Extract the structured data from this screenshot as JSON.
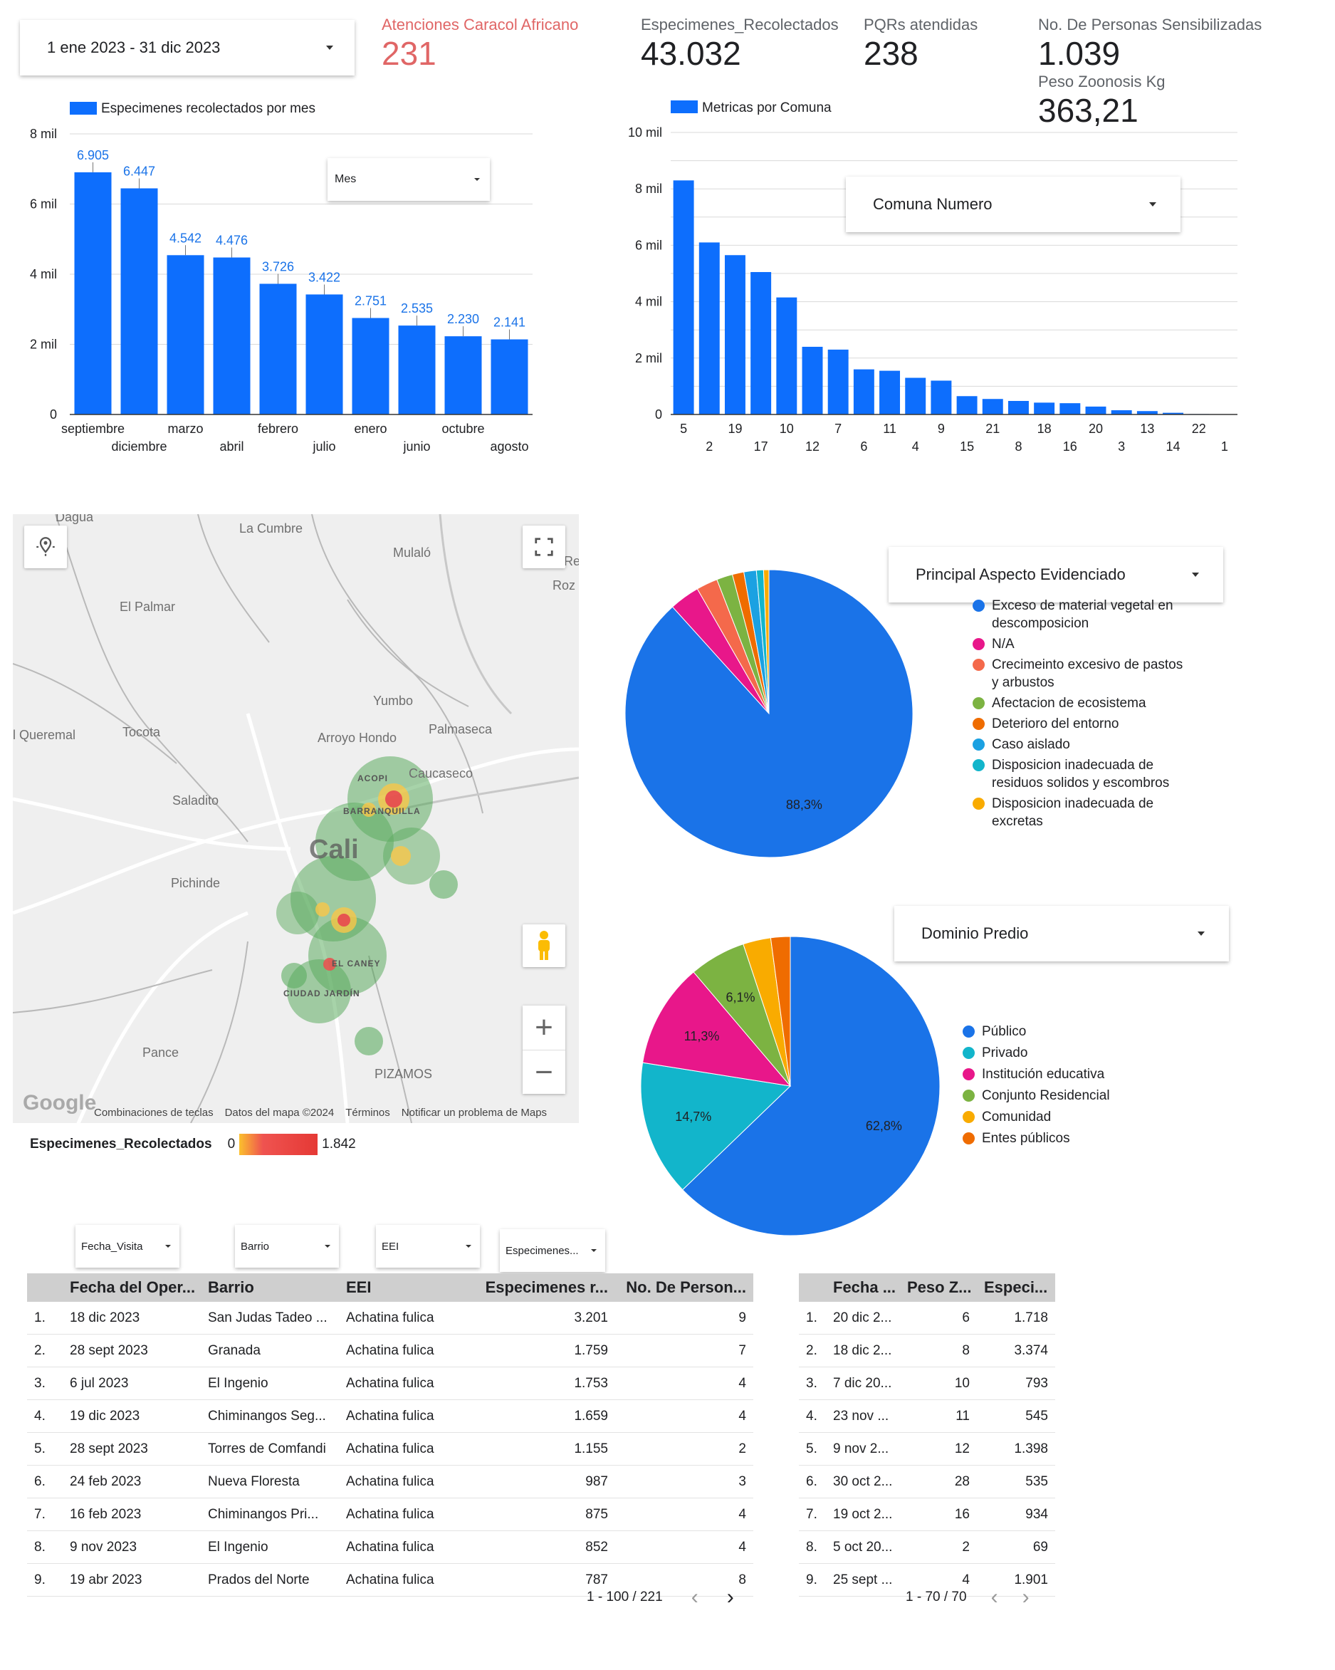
{
  "date_range": {
    "label": "1 ene 2023 - 31 dic 2023"
  },
  "kpis": [
    {
      "label": "Atenciones Caracol Africano",
      "value": "231",
      "color": "#e06666"
    },
    {
      "label": "Especimenes_Recolectados",
      "value": "43.032"
    },
    {
      "label": "PQRs atendidas",
      "value": "238"
    },
    {
      "label": "No. De Personas Sensibilizadas",
      "value": "1.039"
    },
    {
      "label": "Peso Zoonosis Kg",
      "value": "363,21"
    }
  ],
  "colors": {
    "primary_blue": "#1a73e8",
    "bar_blue": "#0d6efd",
    "label_blue": "#1a73e8",
    "header_gray": "#cfcfcf"
  },
  "chart_data": [
    {
      "type": "bar",
      "legend": "Especimenes recolectados por mes",
      "categories": [
        "septiembre",
        "diciembre",
        "marzo",
        "abril",
        "febrero",
        "julio",
        "enero",
        "junio",
        "octubre",
        "agosto"
      ],
      "values": [
        6905,
        6447,
        4542,
        4476,
        3726,
        3422,
        2751,
        2535,
        2230,
        2141
      ],
      "value_labels": [
        "6.905",
        "6.447",
        "4.542",
        "4.476",
        "3.726",
        "3.422",
        "2.751",
        "2.535",
        "2.230",
        "2.141"
      ],
      "ylim": [
        0,
        8000
      ],
      "yticks": [
        "0",
        "2 mil",
        "4 mil",
        "6 mil",
        "8 mil"
      ],
      "control": "Mes"
    },
    {
      "type": "bar",
      "legend": "Metricas por Comuna",
      "categories": [
        "5",
        "2",
        "19",
        "17",
        "10",
        "12",
        "7",
        "6",
        "11",
        "4",
        "9",
        "15",
        "21",
        "8",
        "18",
        "16",
        "20",
        "3",
        "13",
        "14",
        "22",
        "1"
      ],
      "values": [
        8300,
        6100,
        5650,
        5050,
        4150,
        2400,
        2300,
        1600,
        1550,
        1300,
        1200,
        650,
        550,
        480,
        420,
        400,
        280,
        150,
        120,
        60,
        15,
        5
      ],
      "ylim": [
        0,
        10000
      ],
      "yticks": [
        "0",
        "2 mil",
        "4 mil",
        "6 mil",
        "8 mil",
        "10 mil"
      ],
      "control": "Comuna Numero"
    },
    {
      "type": "pie",
      "control": "Principal Aspecto Evidenciado",
      "slices": [
        {
          "label": "Exceso de material vegetal en descomposicion",
          "value": 88.3,
          "text": "88,3%",
          "color": "#1a73e8"
        },
        {
          "label": "N/A",
          "value": 3.4,
          "color": "#e8178a"
        },
        {
          "label": "Crecimeinto excesivo de pastos y arbustos",
          "value": 2.4,
          "color": "#f4694b"
        },
        {
          "label": "Afectacion de ecosistema",
          "value": 1.8,
          "color": "#7cb342"
        },
        {
          "label": "Deterioro del entorno",
          "value": 1.3,
          "color": "#ef6c00"
        },
        {
          "label": "Caso aislado",
          "value": 1.4,
          "color": "#1ba1e2"
        },
        {
          "label": "Disposicion inadecuada de residuos solidos y escombros",
          "value": 0.8,
          "color": "#12b5cb"
        },
        {
          "label": "Disposicion inadecuada de excretas",
          "value": 0.6,
          "color": "#f9ab00"
        }
      ]
    },
    {
      "type": "pie",
      "control": "Dominio Predio",
      "slices": [
        {
          "label": "Público",
          "value": 62.8,
          "text": "62,8%",
          "color": "#1a73e8"
        },
        {
          "label": "Privado",
          "value": 14.7,
          "text": "14,7%",
          "color": "#12b5cb"
        },
        {
          "label": "Institución educativa",
          "value": 11.3,
          "text": "11,3%",
          "color": "#e8178a"
        },
        {
          "label": "Conjunto Residencial",
          "value": 6.1,
          "text": "6,1%",
          "color": "#7cb342"
        },
        {
          "label": "Comunidad",
          "value": 3.0,
          "color": "#f9ab00"
        },
        {
          "label": "Entes públicos",
          "value": 2.1,
          "color": "#ef6c00"
        }
      ]
    }
  ],
  "map": {
    "places": [
      "Dagua",
      "La Cumbre",
      "Mulaló",
      "El Palmar",
      "Yumbo",
      "Palmaseca",
      "l Queremal",
      "Tocota",
      "Arroyo Hondo",
      "Caucaseco",
      "Saladito",
      "Cali",
      "Pichinde",
      "Pance",
      "PIZAMOS",
      "ACOPI",
      "BARRANQUILLA",
      "EL CANEY",
      "CIUDAD JARDÍN",
      "Re",
      "Roz"
    ],
    "footer": [
      "Combinaciones de teclas",
      "Datos del mapa ©2024",
      "Términos",
      "Notificar un problema de Maps"
    ],
    "google": "Google",
    "legend_label": "Especimenes_Recolectados",
    "legend_min": "0",
    "legend_max": "1.842",
    "zoom_in": "+",
    "zoom_out": "−"
  },
  "filters": [
    "Fecha_Visita",
    "Barrio",
    "EEI",
    "Especimenes..."
  ],
  "table1": {
    "headers": [
      "Fecha del Oper...",
      "Barrio",
      "EEI",
      "Especimenes r...",
      "No. De Person..."
    ],
    "rows": [
      [
        "1.",
        "18 dic 2023",
        "San Judas Tadeo ...",
        "Achatina fulica",
        "3.201",
        "9"
      ],
      [
        "2.",
        "28 sept 2023",
        "Granada",
        "Achatina fulica",
        "1.759",
        "7"
      ],
      [
        "3.",
        "6 jul 2023",
        "El Ingenio",
        "Achatina fulica",
        "1.753",
        "4"
      ],
      [
        "4.",
        "19 dic 2023",
        "Chiminangos Seg...",
        "Achatina fulica",
        "1.659",
        "4"
      ],
      [
        "5.",
        "28 sept 2023",
        "Torres de Comfandi",
        "Achatina fulica",
        "1.155",
        "2"
      ],
      [
        "6.",
        "24 feb 2023",
        "Nueva Floresta",
        "Achatina fulica",
        "987",
        "3"
      ],
      [
        "7.",
        "16 feb 2023",
        "Chiminangos Pri...",
        "Achatina fulica",
        "875",
        "4"
      ],
      [
        "8.",
        "9 nov 2023",
        "El Ingenio",
        "Achatina fulica",
        "852",
        "4"
      ],
      [
        "9.",
        "19 abr 2023",
        "Prados del Norte",
        "Achatina fulica",
        "787",
        "8"
      ]
    ],
    "pagination": "1 - 100 / 221"
  },
  "table2": {
    "headers": [
      "Fecha ...",
      "Peso Z...",
      "Especi..."
    ],
    "rows": [
      [
        "1.",
        "20 dic 2...",
        "6",
        "1.718"
      ],
      [
        "2.",
        "18 dic 2...",
        "8",
        "3.374"
      ],
      [
        "3.",
        "7 dic 20...",
        "10",
        "793"
      ],
      [
        "4.",
        "23 nov ...",
        "11",
        "545"
      ],
      [
        "5.",
        "9 nov 2...",
        "12",
        "1.398"
      ],
      [
        "6.",
        "30 oct 2...",
        "28",
        "535"
      ],
      [
        "7.",
        "19 oct 2...",
        "16",
        "934"
      ],
      [
        "8.",
        "5 oct 20...",
        "2",
        "69"
      ],
      [
        "9.",
        "25 sept ...",
        "4",
        "1.901"
      ]
    ],
    "pagination": "1 - 70 / 70"
  }
}
